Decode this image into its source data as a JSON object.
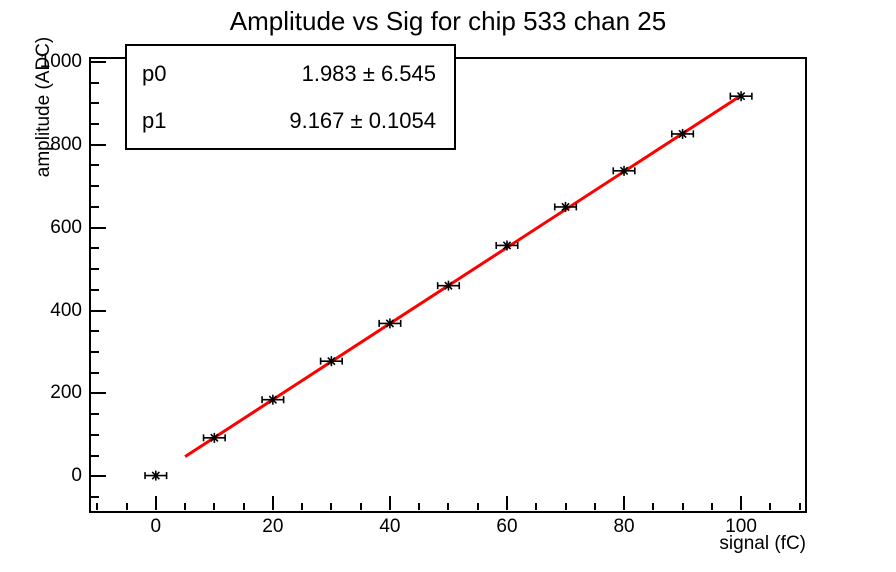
{
  "canvas": {
    "background": "#ffffff",
    "foreground": "#000000"
  },
  "title": "Amplitude vs Sig for chip 533 chan 25",
  "stats_box": {
    "rows": [
      {
        "label": "p0",
        "value": "1.983 ± 6.545"
      },
      {
        "label": "p1",
        "value": "9.167 ± 0.1054"
      }
    ]
  },
  "chart_data": {
    "type": "scatter",
    "title": "Amplitude vs Sig for chip 533 chan 25",
    "xlabel": "signal (fC)",
    "ylabel": "amplitude (ADC)",
    "xlim": [
      -11,
      111
    ],
    "ylim": [
      -86,
      1012
    ],
    "x_ticks": [
      0,
      20,
      40,
      60,
      80,
      100
    ],
    "y_ticks": [
      0,
      200,
      400,
      600,
      800,
      1000
    ],
    "x_minor_step": 5,
    "y_minor_step": 50,
    "grid": false,
    "legend": "none",
    "marker": "star-with-x-error-bars",
    "marker_color": "#000000",
    "x": [
      0,
      10,
      20,
      30,
      40,
      50,
      60,
      70,
      80,
      90,
      100
    ],
    "y": [
      2,
      93,
      185,
      278,
      369,
      460,
      557,
      650,
      737,
      826,
      917
    ],
    "x_error": 1.5,
    "fit_line": {
      "type": "linear",
      "p0": 1.983,
      "p0_error": 6.545,
      "p1": 9.167,
      "p1_error": 0.1054,
      "x_range": [
        5,
        100
      ],
      "color": "#ff0000"
    }
  }
}
